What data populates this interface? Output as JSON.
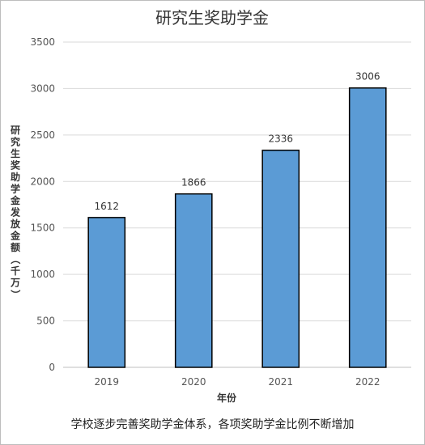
{
  "chart_data": {
    "type": "bar",
    "title": "研究生奖助学金",
    "xlabel": "年份",
    "ylabel": "研究生奖助学金发放金额（千万）",
    "categories": [
      "2019",
      "2020",
      "2021",
      "2022"
    ],
    "values": [
      1612,
      1866,
      2336,
      3006
    ],
    "data_labels": [
      "1612",
      "1866",
      "2336",
      "3006"
    ],
    "ylim": [
      0,
      3500
    ],
    "yticks": [
      0,
      500,
      1000,
      1500,
      2000,
      2500,
      3000,
      3500
    ],
    "grid": true,
    "legend": "none",
    "bar_color": "#5b9bd5",
    "bar_border_color": "#000000"
  },
  "caption": "学校逐步完善奖助学金体系，各项奖助学金比例不断增加"
}
